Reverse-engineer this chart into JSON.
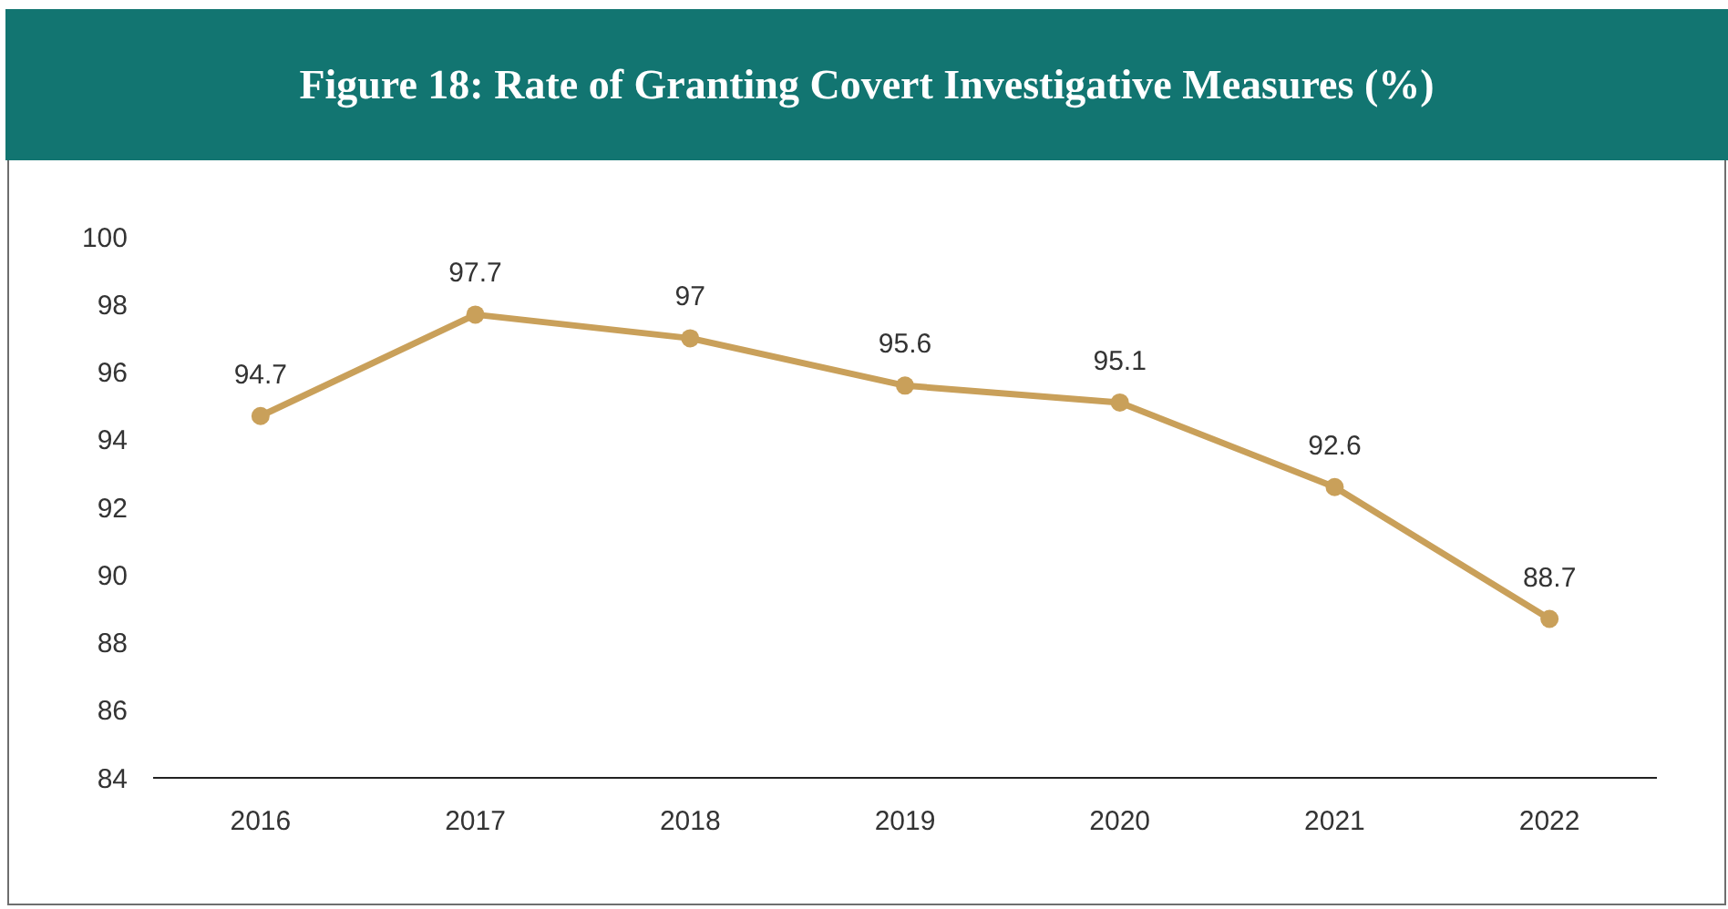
{
  "chart_data": {
    "type": "line",
    "title": "Figure 18: Rate of Granting Covert Investigative Measures (%)",
    "categories": [
      "2016",
      "2017",
      "2018",
      "2019",
      "2020",
      "2021",
      "2022"
    ],
    "series": [
      {
        "color": "#c9a05a",
        "values": [
          94.7,
          97.7,
          97,
          95.6,
          95.1,
          92.6,
          88.7
        ]
      }
    ],
    "ylim": [
      84,
      100
    ],
    "yticks": [
      84,
      86,
      88,
      90,
      92,
      94,
      96,
      98,
      100
    ],
    "grid": false,
    "legend": false,
    "marker": "circle",
    "line_style": "solid",
    "data_labels": true
  }
}
